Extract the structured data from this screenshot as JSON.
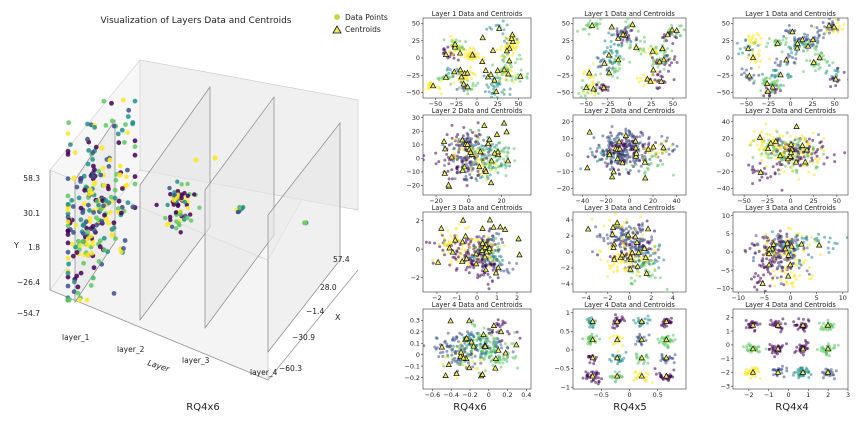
{
  "figure_captions": [
    "RQ4x6",
    "RQ4x6",
    "RQ4x5",
    "RQ4x4"
  ],
  "colors": {
    "viridis": [
      "#440154",
      "#3b528b",
      "#21918c",
      "#5ec962",
      "#fde725"
    ],
    "centroid_fill": "#f0ec55",
    "centroid_stroke": "#111111",
    "points_legend": "#c8d84a"
  },
  "chart_data": [
    {
      "type": "scatter",
      "projection": "3d",
      "title": "Visualization of Layers Data and Centroids",
      "legend": {
        "placement": "top-right",
        "entries": [
          "Data Points",
          "Centroids"
        ]
      },
      "xlabel": "X",
      "ylabel": "Y",
      "zlabel": "Layer",
      "layer_ticks": [
        "layer_1",
        "layer_2",
        "layer_3",
        "layer_4"
      ],
      "x_ticks": [
        "57.4",
        "28.0",
        "−1.4",
        "−30.9",
        "−60.3"
      ],
      "y_ticks": [
        "58.3",
        "30.1",
        "1.8",
        "−26.4",
        "−54.7"
      ],
      "clusters": [
        {
          "layer": "layer_1",
          "x_range": [
            -45,
            40
          ],
          "y_range": [
            -50,
            55
          ],
          "points": 260
        },
        {
          "layer": "layer_2",
          "x_range": [
            -10,
            10
          ],
          "y_range": [
            -5,
            20
          ],
          "points": 70
        },
        {
          "layer": "layer_3",
          "x_range": [
            -2,
            2
          ],
          "y_range": [
            -2,
            2
          ],
          "points": 10
        },
        {
          "layer": "layer_4",
          "x_range": [
            -0.5,
            0.5
          ],
          "y_range": [
            -0.5,
            0.5
          ],
          "points": 3
        }
      ],
      "caption": "RQ4x6"
    },
    {
      "type": "scatter",
      "grid": {
        "rows": 4,
        "cols": 3,
        "col_captions": [
          "RQ4x6",
          "RQ4x5",
          "RQ4x4"
        ],
        "cells": [
          {
            "title": "Layer 1 Data and Centroids",
            "xlim": [
              -65,
              65
            ],
            "ylim": [
              -58,
              58
            ],
            "xticks": [
              -50,
              -25,
              0,
              25,
              50
            ],
            "yticks": [
              -50,
              -25,
              0,
              25,
              50
            ],
            "pattern": "clusters",
            "centroids": 34
          },
          {
            "title": "Layer 1 Data and Centroids",
            "xlim": [
              -65,
              65
            ],
            "ylim": [
              -58,
              58
            ],
            "xticks": [
              -50,
              -25,
              0,
              25,
              50
            ],
            "yticks": [
              -50,
              -25,
              0,
              25,
              50
            ],
            "pattern": "clusters",
            "centroids": 26
          },
          {
            "title": "Layer 1 Data and Centroids",
            "xlim": [
              -65,
              65
            ],
            "ylim": [
              -58,
              58
            ],
            "xticks": [
              -50,
              -25,
              0,
              25,
              50
            ],
            "yticks": [
              -50,
              -25,
              0,
              25,
              50
            ],
            "pattern": "clusters",
            "centroids": 20
          },
          {
            "title": "Layer 2 Data and Centroids",
            "xlim": [
              -28,
              38
            ],
            "ylim": [
              -27,
              32
            ],
            "xticks": [
              -20,
              0,
              20
            ],
            "yticks": [
              -20,
              -10,
              0,
              10,
              20,
              30
            ],
            "pattern": "blob",
            "centroids": 30
          },
          {
            "title": "Layer 2 Data and Centroids",
            "xlim": [
              -48,
              48
            ],
            "ylim": [
              -24,
              24
            ],
            "xticks": [
              -40,
              -20,
              0,
              20,
              40
            ],
            "yticks": [
              -20,
              -10,
              0,
              10,
              20
            ],
            "pattern": "blob",
            "centroids": 22
          },
          {
            "title": "Layer 2 Data and Centroids",
            "xlim": [
              -62,
              62
            ],
            "ylim": [
              -48,
              48
            ],
            "xticks": [
              -50,
              -25,
              0,
              25,
              50
            ],
            "yticks": [
              -40,
              -20,
              0,
              20,
              40
            ],
            "pattern": "blob",
            "centroids": 16
          },
          {
            "title": "Layer 3 Data and Centroids",
            "xlim": [
              -2.7,
              2.7
            ],
            "ylim": [
              -3.0,
              2.6
            ],
            "xticks": [
              -2,
              -1,
              0,
              1,
              2
            ],
            "yticks": [
              -2,
              0,
              2
            ],
            "pattern": "blob",
            "centroids": 30
          },
          {
            "title": "Layer 3 Data and Centroids",
            "xlim": [
              -5.2,
              5.2
            ],
            "ylim": [
              -5,
              5
            ],
            "xticks": [
              -4,
              -2,
              0,
              2,
              4
            ],
            "yticks": [
              -4,
              -2,
              0,
              2,
              4
            ],
            "pattern": "blob",
            "centroids": 22
          },
          {
            "title": "Layer 3 Data and Centroids",
            "xlim": [
              -11,
              11
            ],
            "ylim": [
              -11,
              11
            ],
            "xticks": [
              -10,
              -5,
              0,
              5,
              10
            ],
            "yticks": [
              -10,
              -5,
              0,
              5,
              10
            ],
            "pattern": "blob",
            "centroids": 14
          },
          {
            "title": "Layer 4 Data and Centroids",
            "xlim": [
              -0.7,
              0.45
            ],
            "ylim": [
              -0.3,
              0.4
            ],
            "xticks": [
              -0.6,
              -0.4,
              -0.2,
              0.0,
              0.2,
              0.4
            ],
            "yticks": [
              -0.2,
              -0.1,
              0.0,
              0.1,
              0.2,
              0.3
            ],
            "pattern": "blob",
            "centroids": 28
          },
          {
            "title": "Layer 4 Data and Centroids",
            "xlim": [
              -1.0,
              1.0
            ],
            "ylim": [
              -1.05,
              1.1
            ],
            "xticks": [
              -0.5,
              0.0,
              0.5
            ],
            "yticks": [
              -1.0,
              -0.5,
              0.0,
              0.5,
              1.0
            ],
            "pattern": "grid",
            "centroids": 16
          },
          {
            "title": "Layer 4 Data and Centroids",
            "xlim": [
              -2.8,
              3.0
            ],
            "ylim": [
              -3.2,
              2.6
            ],
            "xticks": [
              -2,
              -1,
              0,
              1,
              2,
              3
            ],
            "yticks": [
              -3,
              -2,
              -1,
              0,
              1,
              2
            ],
            "pattern": "grid",
            "centroids": 12
          }
        ]
      }
    }
  ]
}
